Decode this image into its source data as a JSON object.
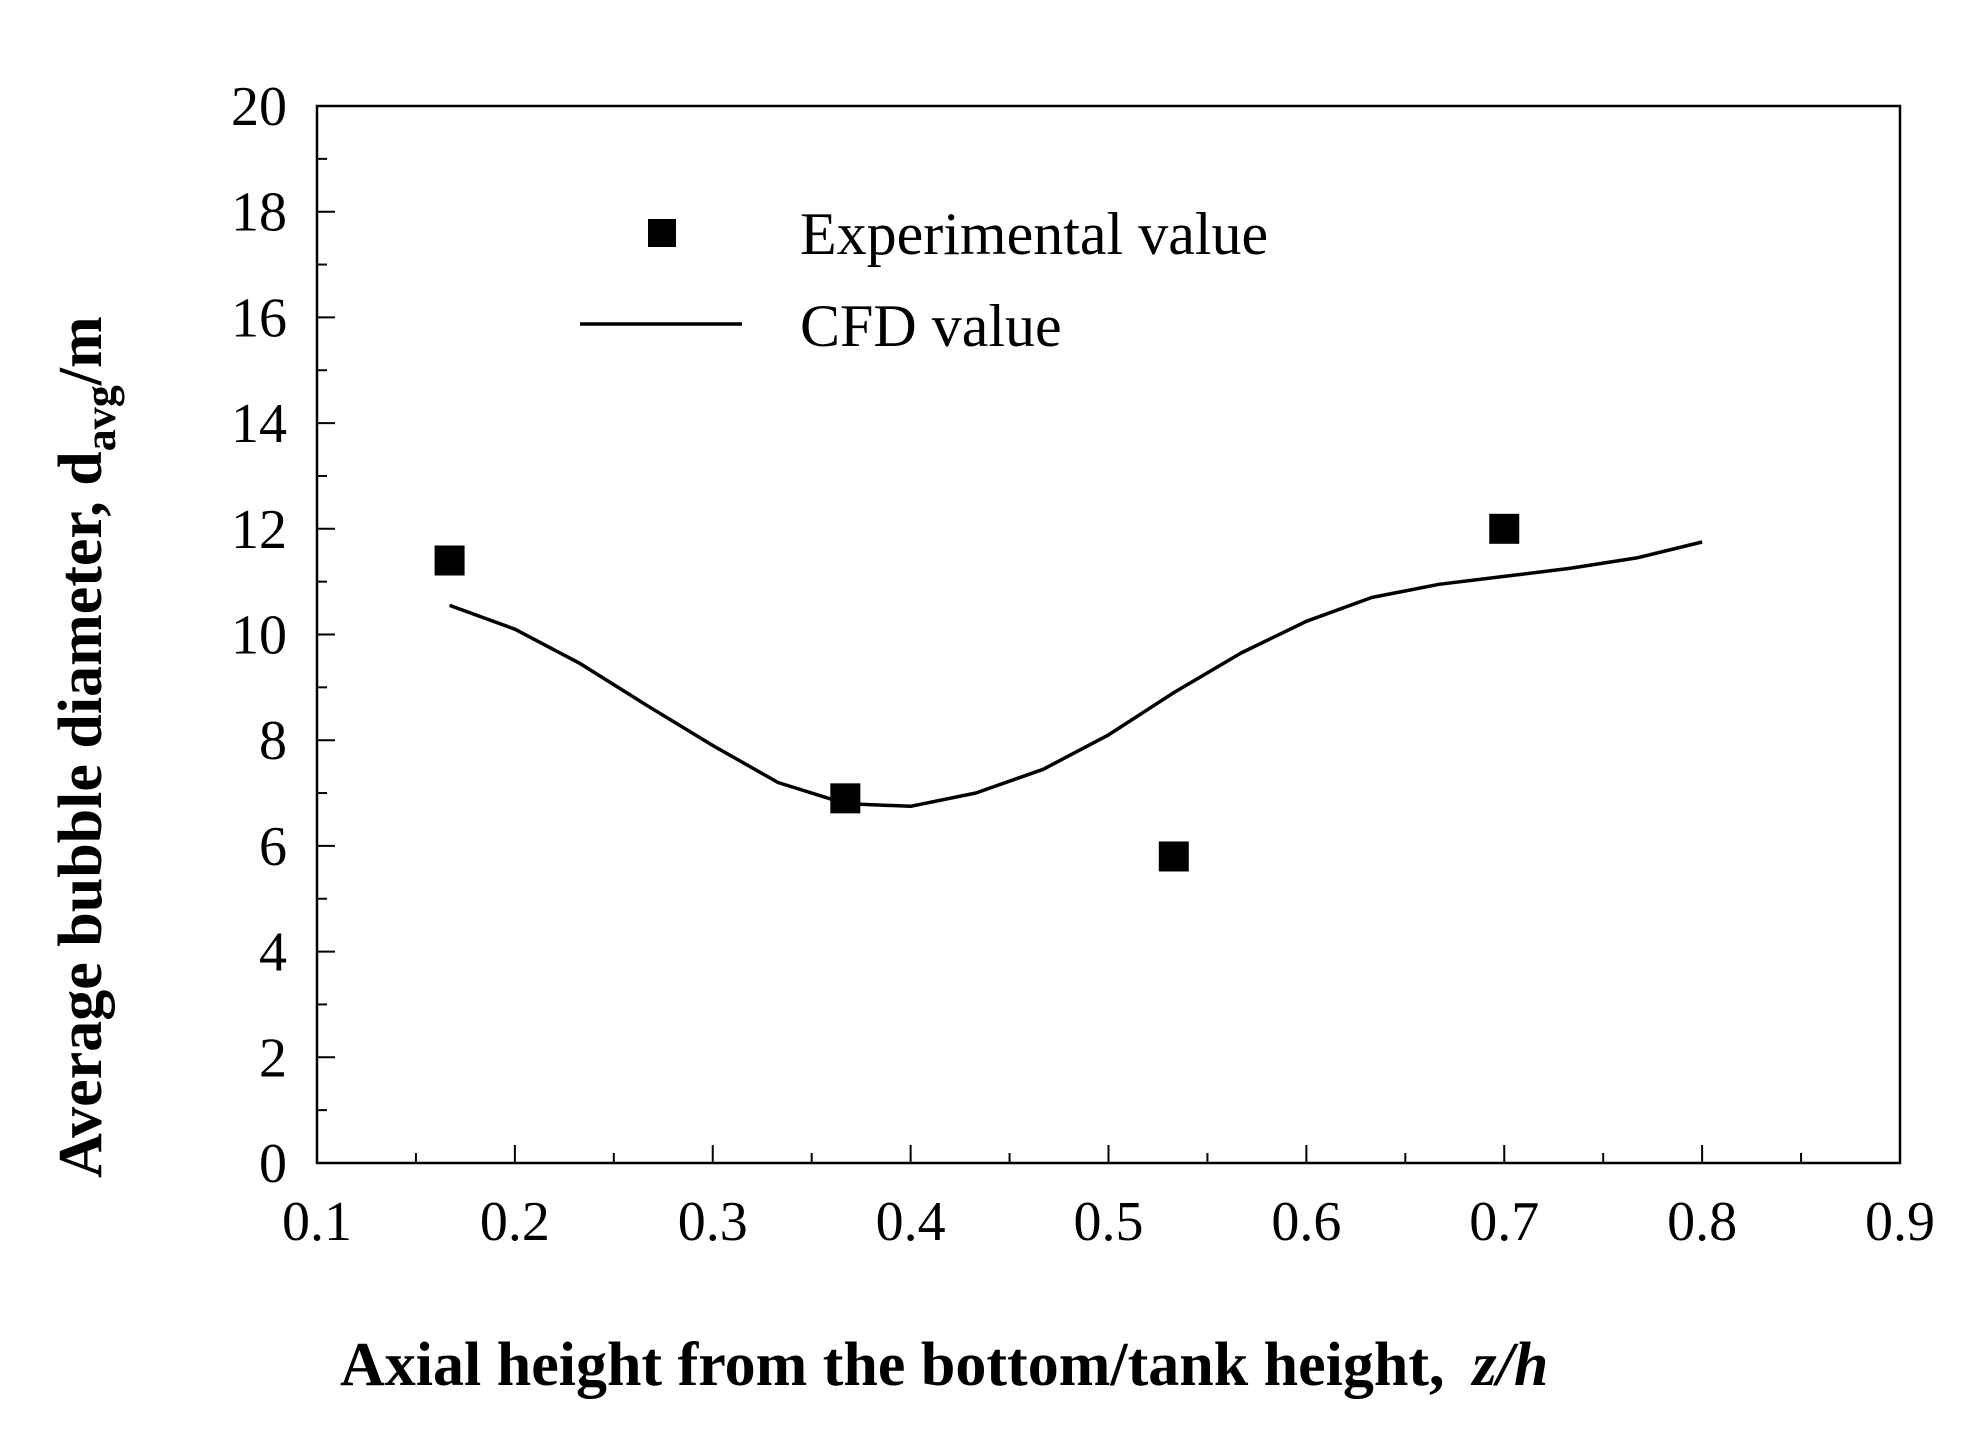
{
  "chart_data": {
    "type": "line",
    "title": "",
    "xlabel": "Axial height from the bottom/tank height,",
    "xlabel_var": "z/h",
    "ylabel_prefix": "Average bubble diameter,  d",
    "ylabel_sub": "avg",
    "ylabel_suffix": "/m",
    "xlim": [
      0.1,
      0.9
    ],
    "ylim": [
      0,
      20
    ],
    "xticks": [
      "0.1",
      "0.2",
      "0.3",
      "0.4",
      "0.5",
      "0.6",
      "0.7",
      "0.8",
      "0.9"
    ],
    "yticks": [
      "0",
      "2",
      "4",
      "6",
      "8",
      "10",
      "12",
      "14",
      "16",
      "18",
      "20"
    ],
    "grid": false,
    "legend_position": "top-left",
    "series": [
      {
        "name": "Experimental value",
        "kind": "scatter",
        "marker": "square",
        "color": "#000000",
        "x": [
          0.167,
          0.367,
          0.533,
          0.7
        ],
        "y": [
          11.4,
          6.9,
          5.8,
          12.0
        ]
      },
      {
        "name": "CFD value",
        "kind": "line",
        "color": "#000000",
        "x": [
          0.167,
          0.2,
          0.233,
          0.267,
          0.3,
          0.333,
          0.367,
          0.4,
          0.433,
          0.467,
          0.5,
          0.533,
          0.567,
          0.6,
          0.633,
          0.667,
          0.7,
          0.733,
          0.767,
          0.8
        ],
        "y": [
          10.55,
          10.1,
          9.45,
          8.65,
          7.9,
          7.2,
          6.8,
          6.75,
          7.0,
          7.45,
          8.1,
          8.9,
          9.65,
          10.25,
          10.7,
          10.95,
          11.1,
          11.25,
          11.45,
          11.75
        ]
      }
    ]
  }
}
